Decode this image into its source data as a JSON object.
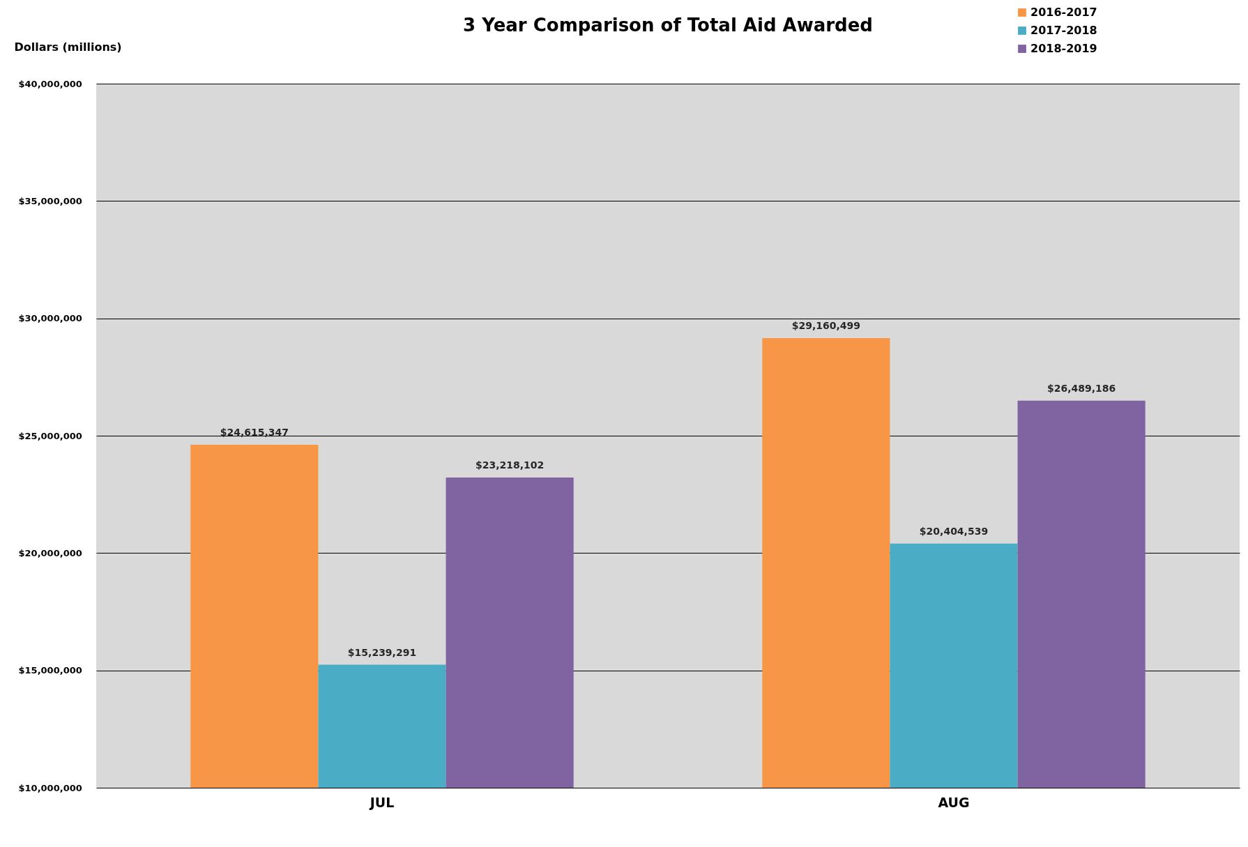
{
  "chart_data": {
    "type": "bar",
    "title": "3 Year Comparison of Total Aid Awarded",
    "ylabel": "Dollars (millions)",
    "categories": [
      "JUL",
      "AUG"
    ],
    "series": [
      {
        "name": "2016-2017",
        "color": "#f79646",
        "values": [
          24615347,
          29160499
        ],
        "value_labels": [
          "$24,615,347",
          "$29,160,499"
        ]
      },
      {
        "name": "2017-2018",
        "color": "#4bacc6",
        "values": [
          15239291,
          20404539
        ],
        "value_labels": [
          "$15,239,291",
          "$20,404,539"
        ]
      },
      {
        "name": "2018-2019",
        "color": "#8064a2",
        "values": [
          23218102,
          26489186
        ],
        "value_labels": [
          "$23,218,102",
          "$26,489,186"
        ]
      }
    ],
    "ylim": [
      10000000,
      40000000
    ],
    "yticks": [
      {
        "value": 10000000,
        "label": "$10,000,000"
      },
      {
        "value": 15000000,
        "label": "$15,000,000"
      },
      {
        "value": 20000000,
        "label": "$20,000,000"
      },
      {
        "value": 25000000,
        "label": "$25,000,000"
      },
      {
        "value": 30000000,
        "label": "$30,000,000"
      },
      {
        "value": 35000000,
        "label": "$35,000,000"
      },
      {
        "value": 40000000,
        "label": "$40,000,000"
      }
    ],
    "grid": "y",
    "legend": "top right"
  }
}
